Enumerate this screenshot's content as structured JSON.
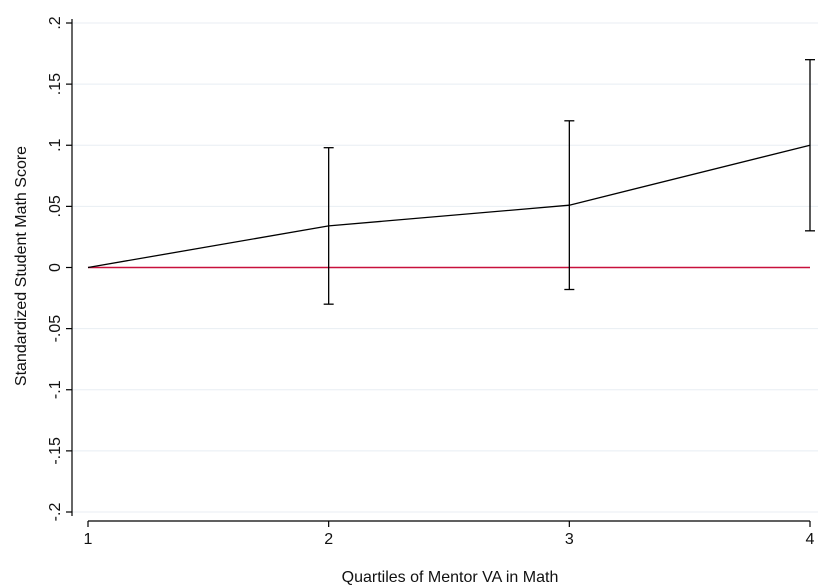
{
  "chart_data": {
    "type": "line",
    "title": "",
    "xlabel": "Quartiles of Mentor VA in Math",
    "ylabel": "Standardized Student Math Score",
    "x_ticks": [
      "1",
      "2",
      "3",
      "4"
    ],
    "y_ticks": [
      {
        "value": 0.2,
        "label": ".2"
      },
      {
        "value": 0.15,
        "label": ".15"
      },
      {
        "value": 0.1,
        "label": ".1"
      },
      {
        "value": 0.05,
        "label": ".05"
      },
      {
        "value": 0,
        "label": "0"
      },
      {
        "value": -0.05,
        "label": "-.05"
      },
      {
        "value": -0.1,
        "label": "-.1"
      },
      {
        "value": -0.15,
        "label": "-.15"
      },
      {
        "value": -0.2,
        "label": "-.2"
      }
    ],
    "xlim": [
      1,
      4
    ],
    "ylim": [
      -0.2,
      0.2
    ],
    "grid": true,
    "legend": "none",
    "series": [
      {
        "x": [
          1,
          2,
          3,
          4
        ],
        "y": [
          0,
          0.034,
          0.051,
          0.1
        ],
        "ci_low": [
          null,
          -0.03,
          -0.018,
          0.03
        ],
        "ci_high": [
          null,
          0.098,
          0.12,
          0.17
        ]
      }
    ],
    "reference_line": {
      "y": 0,
      "color": "#c8103c"
    },
    "colors": {
      "line": "#000000",
      "grid": "#e8eef3",
      "axis": "#000000"
    }
  }
}
